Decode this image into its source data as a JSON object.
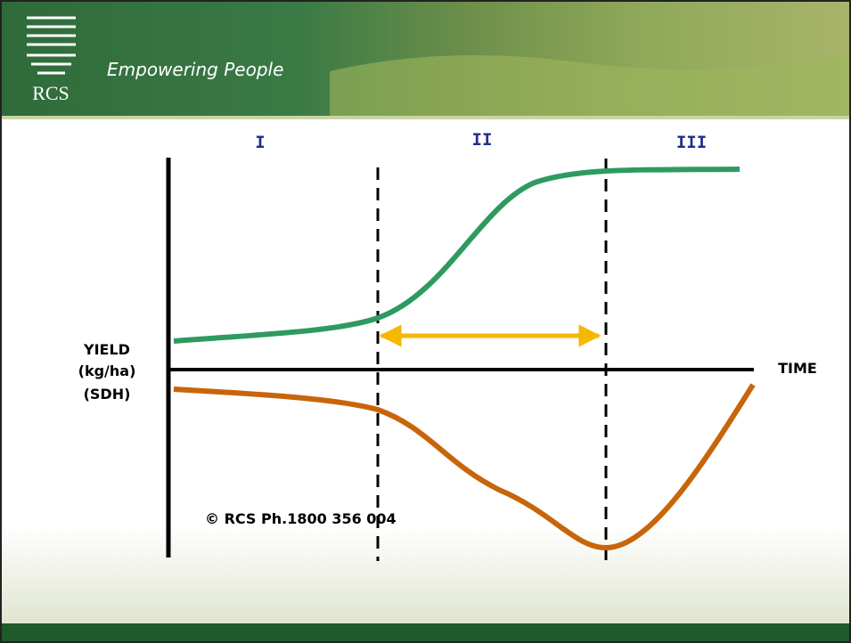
{
  "header": {
    "logo": "RCS",
    "tagline": "Empowering People"
  },
  "diagram": {
    "phases": [
      "I",
      "II",
      "III"
    ],
    "y_axis_label": [
      "YIELD",
      "(kg/ha)",
      "(SDH)"
    ],
    "x_axis_label": "TIME",
    "copyright": "© RCS Ph.1800 356 004"
  }
}
